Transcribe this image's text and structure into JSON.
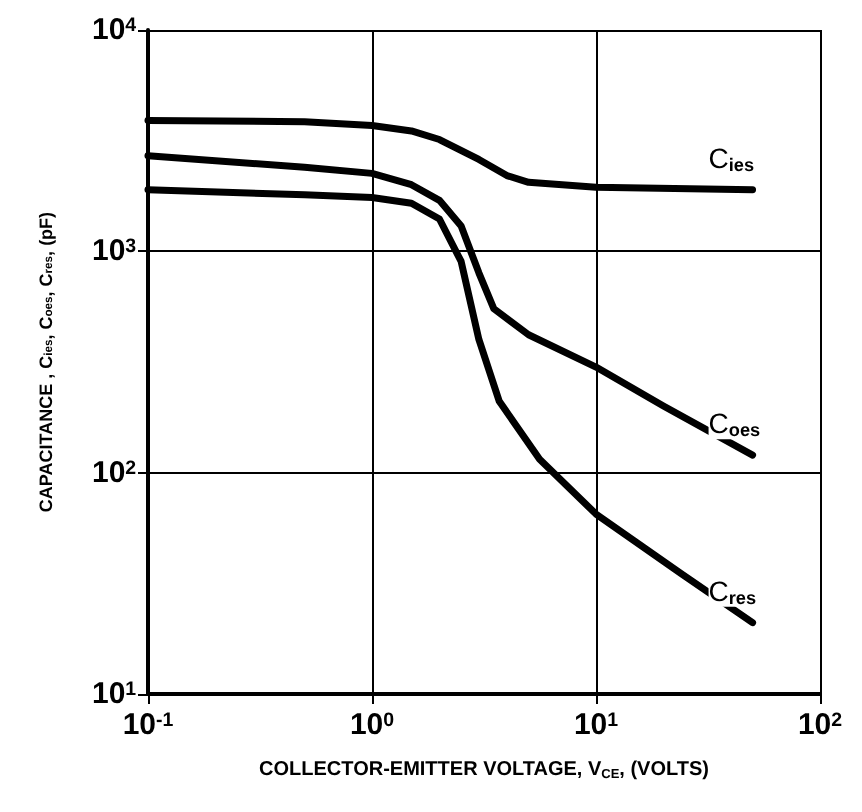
{
  "chart_data": {
    "type": "line",
    "xlabel": "COLLECTOR-EMITTER VOLTAGE, V$_{CE}$, (VOLTS)",
    "ylabel": "CAPACITANCE , C$_{ies}$, C$_{oes}$, C$_{res}$, (pF)",
    "log": "xy",
    "grid": true,
    "legend": false,
    "marker": "none",
    "line_style": "solid",
    "xlim": [
      0.1,
      100
    ],
    "xticks": [
      {
        "value": 0.1,
        "label": "10$^{-1}$"
      },
      {
        "value": 1,
        "label": "10$^{0}$"
      },
      {
        "value": 10,
        "label": "10$^{1}$"
      },
      {
        "value": 100,
        "label": "10$^{2}$"
      }
    ],
    "ylim": [
      10,
      10000
    ],
    "yticks": [
      {
        "value": 10,
        "label": "10$^{1}$"
      },
      {
        "value": 100,
        "label": "10$^{2}$"
      },
      {
        "value": 1000,
        "label": "10$^{3}$"
      },
      {
        "value": 10000,
        "label": "10$^{4}$"
      }
    ],
    "series": [
      {
        "name": "C$_{ies}$",
        "color": "#000000",
        "x": [
          0.1,
          0.5,
          1,
          1.5,
          2,
          3,
          4,
          5,
          10,
          50
        ],
        "values": [
          3900,
          3850,
          3700,
          3500,
          3200,
          2600,
          2200,
          2050,
          1950,
          1900
        ]
      },
      {
        "name": "C$_{oes}$",
        "color": "#000000",
        "x": [
          0.1,
          0.5,
          1,
          1.5,
          2,
          2.5,
          3,
          3.5,
          5,
          10,
          20,
          50
        ],
        "values": [
          2700,
          2400,
          2250,
          2000,
          1700,
          1300,
          800,
          550,
          420,
          300,
          200,
          120
        ]
      },
      {
        "name": "C$_{res}$",
        "color": "#000000",
        "x": [
          0.1,
          0.5,
          1,
          1.5,
          2,
          2.5,
          3,
          3.7,
          5.6,
          10,
          24,
          50
        ],
        "values": [
          1900,
          1800,
          1750,
          1650,
          1400,
          900,
          400,
          210,
          115,
          65,
          35,
          21
        ]
      }
    ]
  }
}
